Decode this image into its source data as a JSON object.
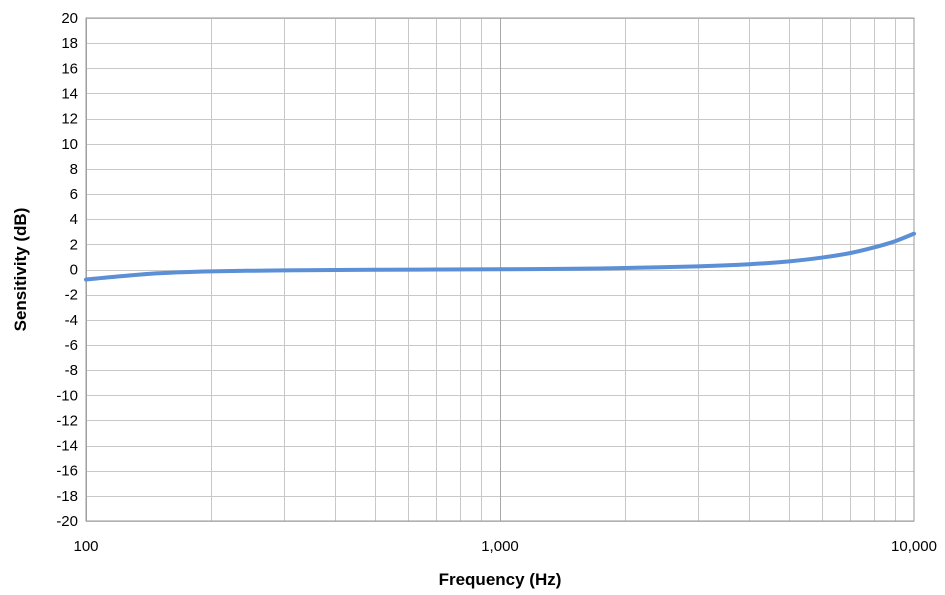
{
  "chart_data": {
    "type": "line",
    "title": "",
    "xlabel": "Frequency (Hz)",
    "ylabel": "Sensitivity (dB)",
    "x_scale": "log",
    "xlim": [
      100,
      10000
    ],
    "ylim": [
      -20,
      20
    ],
    "x_ticks": [
      100,
      1000,
      10000
    ],
    "x_tick_labels": [
      "100",
      "1,000",
      "10,000"
    ],
    "y_ticks": [
      20,
      18,
      16,
      14,
      12,
      10,
      8,
      6,
      4,
      2,
      0,
      -2,
      -4,
      -6,
      -8,
      -10,
      -12,
      -14,
      -16,
      -18,
      -20
    ],
    "y_tick_labels": [
      "20",
      "18",
      "16",
      "14",
      "12",
      "10",
      "8",
      "6",
      "4",
      "2",
      "0",
      "-2",
      "-4",
      "-6",
      "-8",
      "-10",
      "-12",
      "-14",
      "-16",
      "-18",
      "-20"
    ],
    "grid": true,
    "legend": "none",
    "line_color": "#5b8fd6",
    "grid_color": "#c8c8c8",
    "series": [
      {
        "x": [
          100,
          120,
          150,
          200,
          300,
          400,
          500,
          700,
          1000,
          1500,
          2000,
          3000,
          4000,
          5000,
          6000,
          7000,
          8000,
          9000,
          10000
        ],
        "y": [
          -0.8,
          -0.55,
          -0.3,
          -0.15,
          -0.07,
          -0.04,
          -0.02,
          0.0,
          0.02,
          0.06,
          0.12,
          0.25,
          0.42,
          0.65,
          0.95,
          1.3,
          1.75,
          2.25,
          2.85
        ]
      }
    ]
  }
}
